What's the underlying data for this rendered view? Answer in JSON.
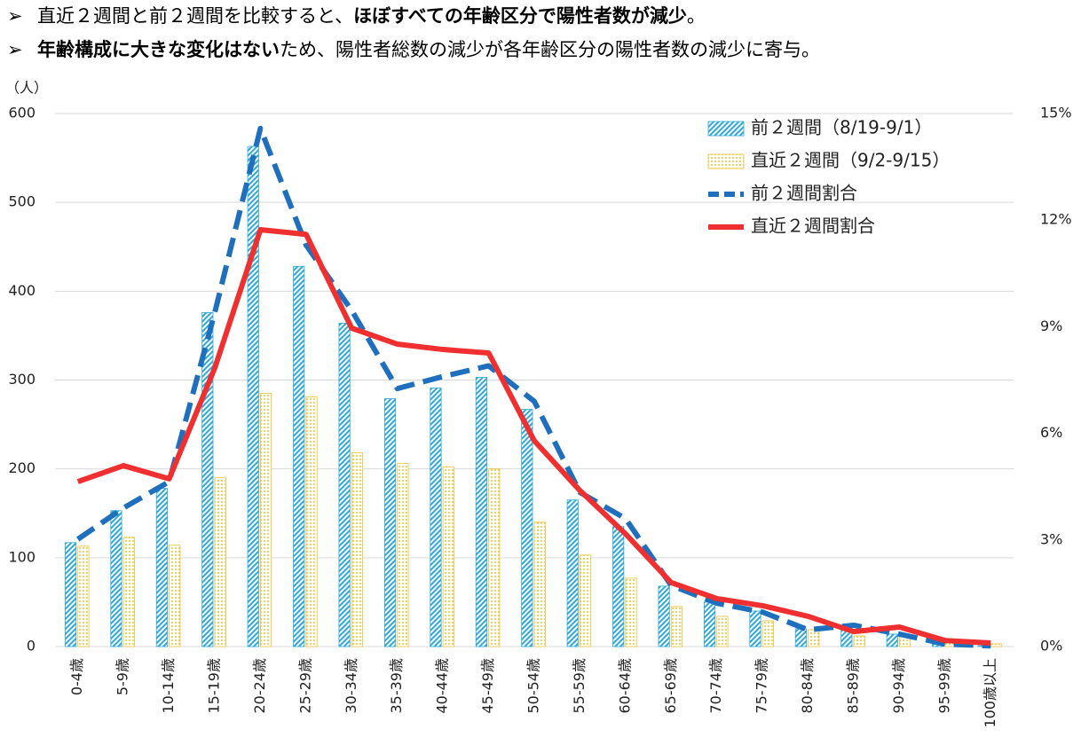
{
  "bullets": [
    [
      {
        "text": "直近２週間と前２週間を比較すると、",
        "bold": false
      },
      {
        "text": "ほぼすべての年齢区分で陽性者数が減少",
        "bold": true
      },
      {
        "text": "。",
        "bold": false
      }
    ],
    [
      {
        "text": "年齢構成に大きな変化はない",
        "bold": true
      },
      {
        "text": "ため、陽性者総数の減少が各年齢区分の陽性者数の減少に寄与。",
        "bold": false
      }
    ]
  ],
  "chart_data": {
    "type": "bar-line",
    "ylabel": "（人）",
    "categories": [
      "0-4歳",
      "5-9歳",
      "10-14歳",
      "15-19歳",
      "20-24歳",
      "25-29歳",
      "30-34歳",
      "35-39歳",
      "40-44歳",
      "45-49歳",
      "50-54歳",
      "55-59歳",
      "60-64歳",
      "65-69歳",
      "70-74歳",
      "75-79歳",
      "80-84歳",
      "85-89歳",
      "90-94歳",
      "95-99歳",
      "100歳以上"
    ],
    "series": [
      {
        "name": "前２週間（8/19-9/1）",
        "type": "bar",
        "color": "#2ea8d8",
        "values": [
          117,
          153,
          178,
          376,
          563,
          428,
          364,
          279,
          291,
          303,
          267,
          165,
          135,
          68,
          50,
          40,
          20,
          20,
          14,
          3,
          1
        ]
      },
      {
        "name": "直近２週間（9/2-9/15）",
        "type": "bar",
        "color": "#f0c030",
        "values": [
          113,
          123,
          114,
          190,
          285,
          281,
          218,
          206,
          202,
          200,
          140,
          103,
          77,
          45,
          34,
          29,
          19,
          12,
          13,
          4,
          3
        ]
      },
      {
        "name": "前２週間割合",
        "type": "line",
        "dashed": true,
        "axis": "y2",
        "color": "#1f6fbf",
        "values": [
          3.02,
          3.9,
          4.64,
          9.4,
          14.58,
          11.3,
          9.46,
          7.26,
          7.6,
          7.9,
          6.9,
          4.34,
          3.6,
          1.72,
          1.22,
          0.97,
          0.47,
          0.6,
          0.35,
          0.07,
          0.02
        ]
      },
      {
        "name": "直近２週間割合",
        "type": "line",
        "dashed": false,
        "axis": "y2",
        "color": "#f03030",
        "values": [
          4.64,
          5.09,
          4.72,
          7.84,
          11.73,
          11.6,
          8.96,
          8.51,
          8.36,
          8.26,
          5.79,
          4.39,
          3.17,
          1.8,
          1.35,
          1.15,
          0.85,
          0.42,
          0.55,
          0.17,
          0.1
        ]
      }
    ],
    "ylim": [
      0,
      600
    ],
    "yticks": [
      0,
      100,
      200,
      300,
      400,
      500,
      600
    ],
    "y2lim": [
      0,
      15
    ],
    "y2ticks": [
      {
        "value": 0,
        "label": "0%"
      },
      {
        "value": 3,
        "label": "3%"
      },
      {
        "value": 6,
        "label": "6%"
      },
      {
        "value": 9,
        "label": "9%"
      },
      {
        "value": 12,
        "label": "12%"
      },
      {
        "value": 15,
        "label": "15%"
      }
    ],
    "grid": true,
    "legend": "upper right"
  }
}
